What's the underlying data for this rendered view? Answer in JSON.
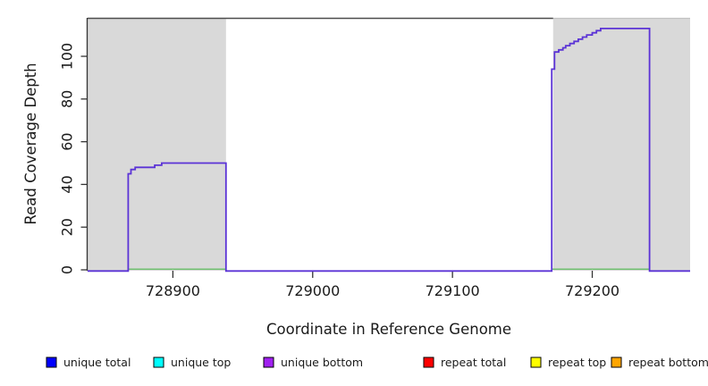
{
  "figure": {
    "background": "#ffffff"
  },
  "chart_data": {
    "type": "line",
    "subtype": "step-coverage",
    "title": "",
    "xlabel": "Coordinate in Reference Genome",
    "ylabel": "Read Coverage Depth",
    "xlim": [
      728839,
      729270
    ],
    "ylim": [
      0,
      118
    ],
    "xticks": [
      728900,
      729000,
      729100,
      729200
    ],
    "yticks": [
      0,
      20,
      40,
      60,
      80,
      100
    ],
    "grid": false,
    "repeat_region_fill": "#d9d9d9",
    "repeat_regions": [
      {
        "start": 728839,
        "end": 728938
      },
      {
        "start": 729172,
        "end": 729270
      }
    ],
    "top_clip_line": {
      "x_start": 728839,
      "x_end": 729172,
      "value": 118,
      "color": "#4d4d4d"
    },
    "series": [
      {
        "name": "unique coverage step line (total/top/bottom overlaid)",
        "color": "#5b33d6",
        "step_points": [
          [
            728839,
            0
          ],
          [
            728868,
            45
          ],
          [
            728870,
            47
          ],
          [
            728873,
            48
          ],
          [
            728887,
            49
          ],
          [
            728892,
            50
          ],
          [
            728938,
            0
          ],
          [
            729171,
            94
          ],
          [
            729173,
            102
          ],
          [
            729176,
            103
          ],
          [
            729179,
            104
          ],
          [
            729181,
            105
          ],
          [
            729184,
            106
          ],
          [
            729187,
            107
          ],
          [
            729190,
            108
          ],
          [
            729193,
            109
          ],
          [
            729196,
            110
          ],
          [
            729200,
            111
          ],
          [
            729203,
            112
          ],
          [
            729206,
            113
          ],
          [
            729241,
            0
          ],
          [
            729270,
            0
          ]
        ]
      },
      {
        "name": "zero-depth baseline annotation",
        "color": "#71c171",
        "value": 0,
        "segments": [
          [
            728868,
            728938
          ],
          [
            729171,
            729241
          ]
        ]
      }
    ],
    "legend": {
      "position": "bottom",
      "marker": "filled-square",
      "marker_border": "#000000",
      "entries": [
        {
          "label": "unique total",
          "color": "#0000ff"
        },
        {
          "label": "unique top",
          "color": "#00ffff"
        },
        {
          "label": "unique bottom",
          "color": "#a020f0"
        },
        {
          "label": "repeat total",
          "color": "#ff0000"
        },
        {
          "label": "repeat top",
          "color": "#ffff00"
        },
        {
          "label": "repeat bottom",
          "color": "#ffa500"
        }
      ]
    }
  }
}
